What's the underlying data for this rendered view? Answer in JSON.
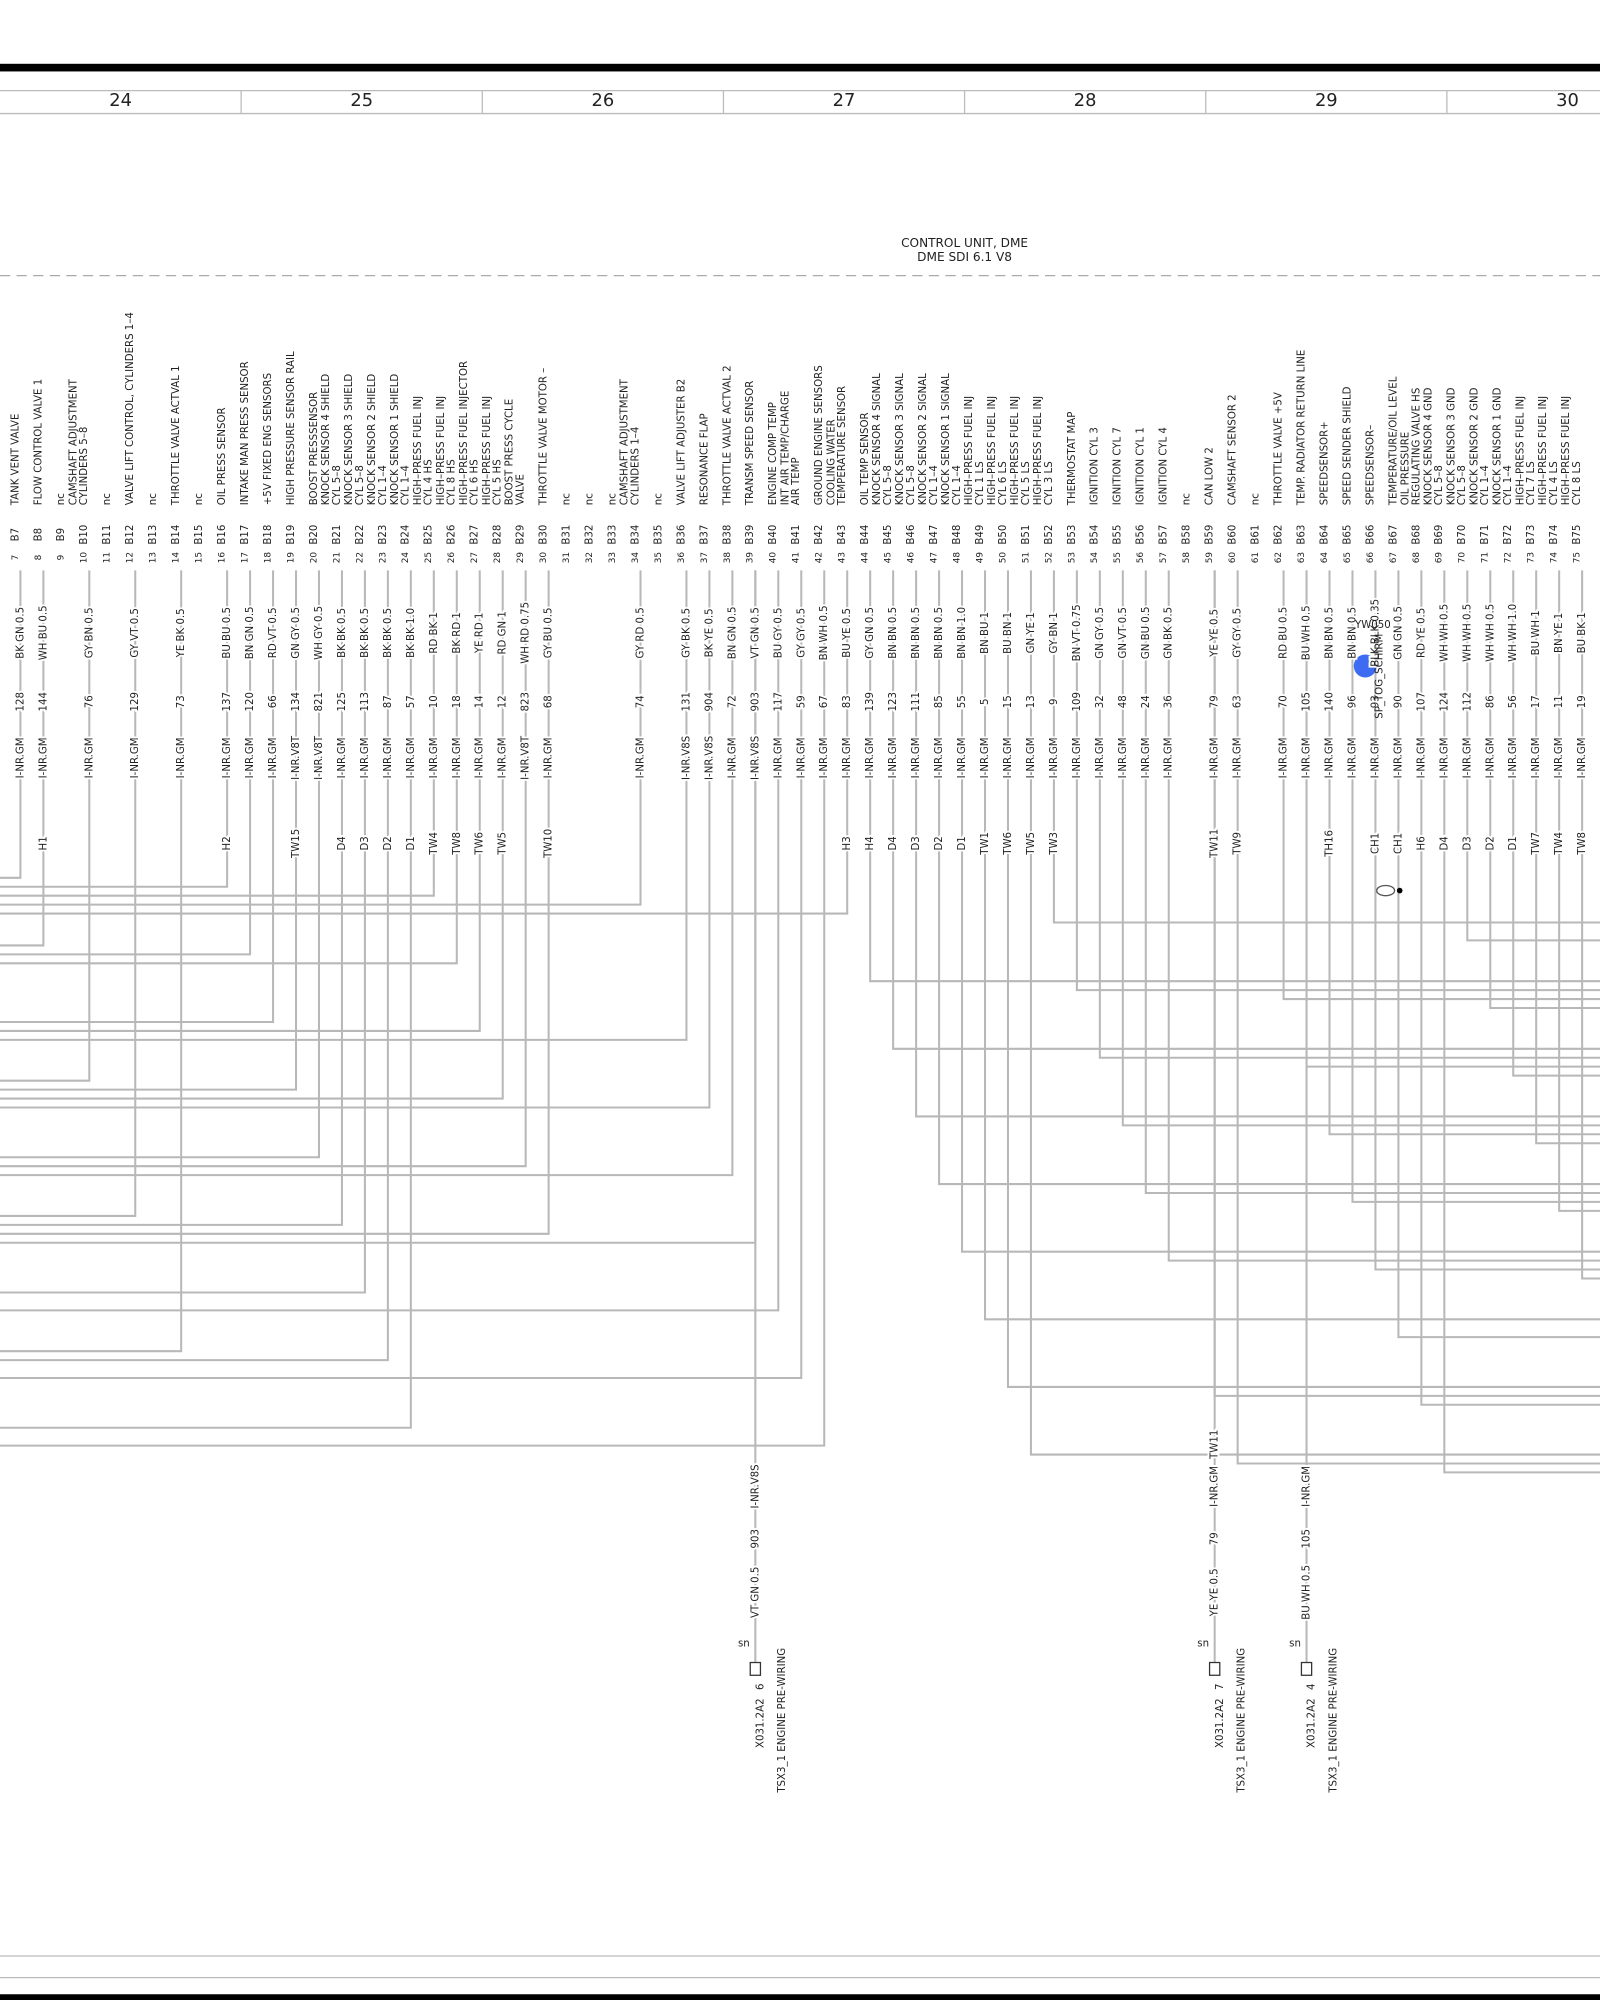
{
  "header": {
    "columns": [
      "24",
      "25",
      "26",
      "27",
      "28",
      "29",
      "30"
    ]
  },
  "title": [
    "CONTROL UNIT, DME",
    "DME SDI 6.1 V8"
  ],
  "pins": [
    {
      "pin": "B7",
      "number": "7",
      "label": [
        "TANK VENT VALVE"
      ],
      "harness": "I-NR.GM",
      "circuit": "128",
      "wire": "BK GN 0.5"
    },
    {
      "pin": "B8",
      "number": "8",
      "label": [
        "FLOW CONTROL VALVE 1"
      ],
      "harness": "I-NR.GM",
      "circuit": "144",
      "wire": "WH BU 0.5",
      "splice": "H1"
    },
    {
      "pin": "B9",
      "number": "9",
      "label": [
        "nc"
      ]
    },
    {
      "pin": "B10",
      "number": "10",
      "label": [
        "CAMSHAFT ADJUSTMENT",
        "CYLINDERS 5–8"
      ],
      "harness": "I-NR.GM",
      "circuit": "76",
      "wire": "GY BN 0.5"
    },
    {
      "pin": "B11",
      "number": "11",
      "label": [
        "nc"
      ]
    },
    {
      "pin": "B12",
      "number": "12",
      "label": [
        "VALVE LIFT CONTROL, CYLINDERS 1–4"
      ],
      "harness": "I-NR.GM",
      "circuit": "129",
      "wire": "GY VT 0.5"
    },
    {
      "pin": "B13",
      "number": "13",
      "label": [
        "nc"
      ]
    },
    {
      "pin": "B14",
      "number": "14",
      "label": [
        "THROTTLE VALVE ACTVAL 1"
      ],
      "harness": "I-NR.GM",
      "circuit": "73",
      "wire": "YE BK 0.5"
    },
    {
      "pin": "B15",
      "number": "15",
      "label": [
        "nc"
      ]
    },
    {
      "pin": "B16",
      "number": "16",
      "label": [
        "OIL PRESS SENSOR"
      ],
      "harness": "I-NR.GM",
      "circuit": "137",
      "wire": "BU BU 0.5",
      "splice": "H2"
    },
    {
      "pin": "B17",
      "number": "17",
      "label": [
        "INTAKE MAN PRESS SENSOR"
      ],
      "harness": "I-NR.GM",
      "circuit": "120",
      "wire": "BN GN 0.5"
    },
    {
      "pin": "B18",
      "number": "18",
      "label": [
        "+5V FIXED ENG SENSORS"
      ],
      "harness": "I-NR.GM",
      "circuit": "66",
      "wire": "RD VT 0.5"
    },
    {
      "pin": "B19",
      "number": "19",
      "label": [
        "HIGH PRESSURE SENSOR RAIL"
      ],
      "harness": "I-NR.V8T",
      "circuit": "134",
      "wire": "GN GY 0.5",
      "splice": "TW15"
    },
    {
      "pin": "B20",
      "number": "20",
      "label": [
        "BOOST PRESSSENSOR"
      ],
      "harness": "I-NR.V8T",
      "circuit": "821",
      "wire": "WH GY 0.5"
    },
    {
      "pin": "B21",
      "number": "21",
      "label": [
        "KNOCK SENSOR 4 SHIELD",
        "CYL 5–8"
      ],
      "harness": "I-NR.GM",
      "circuit": "125",
      "wire": "BK BK 0.5",
      "splice": "D4"
    },
    {
      "pin": "B22",
      "number": "22",
      "label": [
        "KNOCK SENSOR 3 SHIELD",
        "CYL 5–8"
      ],
      "harness": "I-NR.GM",
      "circuit": "113",
      "wire": "BK BK 0.5",
      "splice": "D3"
    },
    {
      "pin": "B23",
      "number": "23",
      "label": [
        "KNOCK SENSOR 2 SHIELD",
        "CYL 1–4"
      ],
      "harness": "I-NR.GM",
      "circuit": "87",
      "wire": "BK BK 0.5",
      "splice": "D2"
    },
    {
      "pin": "B24",
      "number": "24",
      "label": [
        "KNOCK SENSOR 1 SHIELD",
        "CYL 1–4"
      ],
      "harness": "I-NR.GM",
      "circuit": "57",
      "wire": "BK BK 1.0",
      "splice": "D1"
    },
    {
      "pin": "B25",
      "number": "25",
      "label": [
        "HIGH–PRESS FUEL INJ",
        "CYL 4 HS"
      ],
      "harness": "I-NR.GM",
      "circuit": "10",
      "wire": "RD BK 1",
      "splice": "TW4"
    },
    {
      "pin": "B26",
      "number": "26",
      "label": [
        "HIGH–PRESS FUEL INJ",
        "CYL 8 HS"
      ],
      "harness": "I-NR.GM",
      "circuit": "18",
      "wire": "BK RD 1",
      "splice": "TW8"
    },
    {
      "pin": "B27",
      "number": "27",
      "label": [
        "HIGH–PRESS FUEL INJECTOR",
        "CYL 6 HS"
      ],
      "harness": "I-NR.GM",
      "circuit": "14",
      "wire": "YE RD 1",
      "splice": "TW6"
    },
    {
      "pin": "B28",
      "number": "28",
      "label": [
        "HIGH–PRESS FUEL INJ",
        "CYL 5 HS"
      ],
      "harness": "I-NR.GM",
      "circuit": "12",
      "wire": "RD GN 1",
      "splice": "TW5"
    },
    {
      "pin": "B29",
      "number": "29",
      "label": [
        "BOOST PRESS CYCLE",
        "VALVE"
      ],
      "harness": "I-NR.V8T",
      "circuit": "823",
      "wire": "WH RD 0.75"
    },
    {
      "pin": "B30",
      "number": "30",
      "label": [
        "THROTTLE VALVE MOTOR –"
      ],
      "harness": "I-NR.GM",
      "circuit": "68",
      "wire": "GY BU 0.5",
      "splice": "TW10"
    },
    {
      "pin": "B31",
      "number": "31",
      "label": [
        "nc"
      ]
    },
    {
      "pin": "B32",
      "number": "32",
      "label": [
        "nc"
      ]
    },
    {
      "pin": "B33",
      "number": "33",
      "label": [
        "nc"
      ]
    },
    {
      "pin": "B34",
      "number": "34",
      "label": [
        "CAMSHAFT ADJUSTMENT",
        "CYLINDERS 1–4"
      ],
      "harness": "I-NR.GM",
      "circuit": "74",
      "wire": "GY RD 0.5"
    },
    {
      "pin": "B35",
      "number": "35",
      "label": [
        "nc"
      ]
    },
    {
      "pin": "B36",
      "number": "36",
      "label": [
        "VALVE LIFT ADJUSTER B2"
      ],
      "harness": "I-NR.V8S",
      "circuit": "131",
      "wire": "GY BK 0.5"
    },
    {
      "pin": "B37",
      "number": "37",
      "label": [
        "RESONANCE FLAP"
      ],
      "harness": "I-NR.V8S",
      "circuit": "904",
      "wire": "BK YE 0.5"
    },
    {
      "pin": "B38",
      "number": "38",
      "label": [
        "THROTTLE VALVE ACTVAL 2"
      ],
      "harness": "I-NR.GM",
      "circuit": "72",
      "wire": "BN GN 0.5"
    },
    {
      "pin": "B39",
      "number": "39",
      "label": [
        "TRANSM SPEED SENSOR"
      ],
      "harness": "I-NR.V8S",
      "circuit": "903",
      "wire": "VT GN 0.5"
    },
    {
      "pin": "B40",
      "number": "40",
      "label": [
        "ENGINE COMP TEMP"
      ],
      "harness": "I-NR.GM",
      "circuit": "117",
      "wire": "BU GY 0.5"
    },
    {
      "pin": "B41",
      "number": "41",
      "label": [
        "INT AIR TEMP/CHARGE",
        "AIR TEMP"
      ],
      "harness": "I-NR.GM",
      "circuit": "59",
      "wire": "GY GY 0.5"
    },
    {
      "pin": "B42",
      "number": "42",
      "label": [
        "GROUND ENGINE SENSORS"
      ],
      "harness": "I-NR.GM",
      "circuit": "67",
      "wire": "BN WH 0.5"
    },
    {
      "pin": "B43",
      "number": "43",
      "label": [
        "COOLING WATER",
        "TEMPERATURE SENSOR"
      ],
      "harness": "I-NR.GM",
      "circuit": "83",
      "wire": "BU YE 0.5",
      "splice": "H3"
    },
    {
      "pin": "B44",
      "number": "44",
      "label": [
        "OIL TEMP SENSOR"
      ],
      "harness": "I-NR.GM",
      "circuit": "139",
      "wire": "GY GN 0.5",
      "splice": "H4"
    },
    {
      "pin": "B45",
      "number": "45",
      "label": [
        "KNOCK SENSOR 4 SIGNAL",
        "CYL 5–8"
      ],
      "harness": "I-NR.GM",
      "circuit": "123",
      "wire": "BN BN 0.5",
      "splice": "D4"
    },
    {
      "pin": "B46",
      "number": "46",
      "label": [
        "KNOCK SENSOR 3 SIGNAL",
        "CYL 5–8"
      ],
      "harness": "I-NR.GM",
      "circuit": "111",
      "wire": "BN BN 0.5",
      "splice": "D3"
    },
    {
      "pin": "B47",
      "number": "47",
      "label": [
        "KNOCK SENSOR 2 SIGNAL",
        "CYL 1–4"
      ],
      "harness": "I-NR.GM",
      "circuit": "85",
      "wire": "BN BN 0.5",
      "splice": "D2"
    },
    {
      "pin": "B48",
      "number": "48",
      "label": [
        "KNOCK SENSOR 1 SIGNAL",
        "CYL 1–4"
      ],
      "harness": "I-NR.GM",
      "circuit": "55",
      "wire": "BN BN 1.0",
      "splice": "D1"
    },
    {
      "pin": "B49",
      "number": "49",
      "label": [
        "HIGH–PRESS FUEL INJ",
        "CYL 1 LS"
      ],
      "harness": "I-NR.GM",
      "circuit": "5",
      "wire": "BN BU 1",
      "splice": "TW1"
    },
    {
      "pin": "B50",
      "number": "50",
      "label": [
        "HIGH–PRESS FUEL INJ",
        "CYL 6 LS"
      ],
      "harness": "I-NR.GM",
      "circuit": "15",
      "wire": "BU BN 1",
      "splice": "TW6"
    },
    {
      "pin": "B51",
      "number": "51",
      "label": [
        "HIGH–PRESS FUEL INJ",
        "CYL 5 LS"
      ],
      "harness": "I-NR.GM",
      "circuit": "13",
      "wire": "GN YE 1",
      "splice": "TW5"
    },
    {
      "pin": "B52",
      "number": "52",
      "label": [
        "HIGH–PRESS FUEL INJ",
        "CYL 3 LS"
      ],
      "harness": "I-NR.GM",
      "circuit": "9",
      "wire": "GY BN 1",
      "splice": "TW3"
    },
    {
      "pin": "B53",
      "number": "53",
      "label": [
        "THERMOSTAT MAP"
      ],
      "harness": "I-NR.GM",
      "circuit": "109",
      "wire": "BN VT 0.75"
    },
    {
      "pin": "B54",
      "number": "54",
      "label": [
        "IGNITION CYL 3"
      ],
      "harness": "I-NR.GM",
      "circuit": "32",
      "wire": "GN GY 0.5"
    },
    {
      "pin": "B55",
      "number": "55",
      "label": [
        "IGNITION CYL 7"
      ],
      "harness": "I-NR.GM",
      "circuit": "48",
      "wire": "GN VT 0.5"
    },
    {
      "pin": "B56",
      "number": "56",
      "label": [
        "IGNITION CYL 1"
      ],
      "harness": "I-NR.GM",
      "circuit": "24",
      "wire": "GN BU 0.5"
    },
    {
      "pin": "B57",
      "number": "57",
      "label": [
        "IGNITION CYL 4"
      ],
      "harness": "I-NR.GM",
      "circuit": "36",
      "wire": "GN BK 0.5"
    },
    {
      "pin": "B58",
      "number": "58",
      "label": [
        "nc"
      ]
    },
    {
      "pin": "B59",
      "number": "59",
      "label": [
        "CAN LOW 2"
      ],
      "harness": "I-NR.GM",
      "circuit": "79",
      "wire": "YE YE 0.5",
      "splice": "TW11"
    },
    {
      "pin": "B60",
      "number": "60",
      "label": [
        "CAMSHAFT SENSOR 2"
      ],
      "harness": "I-NR.GM",
      "circuit": "63",
      "wire": "GY GY 0.5",
      "splice": "TW9"
    },
    {
      "pin": "B61",
      "number": "61",
      "label": [
        "nc"
      ]
    },
    {
      "pin": "B62",
      "number": "62",
      "label": [
        "THROTTLE VALVE +5V"
      ],
      "harness": "I-NR.GM",
      "circuit": "70",
      "wire": "RD BU 0.5"
    },
    {
      "pin": "B63",
      "number": "63",
      "label": [
        "TEMP. RADIATOR RETURN LINE"
      ],
      "harness": "I-NR.GM",
      "circuit": "105",
      "wire": "BU WH 0.5"
    },
    {
      "pin": "B64",
      "number": "64",
      "label": [
        "SPEEDSENSOR+"
      ],
      "harness": "I-NR.GM",
      "circuit": "140",
      "wire": "BN BN 0.5",
      "splice": "TH16"
    },
    {
      "pin": "B65",
      "number": "65",
      "label": [
        "SPEED SENDER SHIELD"
      ],
      "harness": "I-NR.GM",
      "circuit": "96",
      "wire": "BN BN 0.5"
    },
    {
      "pin": "B66",
      "number": "66",
      "label": [
        "SPEEDSENSOR–"
      ],
      "harness": "I-NR.GM",
      "circuit": "93",
      "wire": "BLK BLK 0.35",
      "splice": "CH1"
    },
    {
      "pin": "B67",
      "number": "67",
      "label": [
        "TEMPERATURE/OIL LEVEL"
      ],
      "harness": "I-NR.GM",
      "circuit": "90",
      "wire": "GN GN 0.5",
      "splice": "CH1"
    },
    {
      "pin": "B68",
      "number": "68",
      "label": [
        "OIL PRESSURE",
        "REGULATING VALVE HS"
      ],
      "harness": "I-NR.GM",
      "circuit": "107",
      "wire": "RD YE 0.5",
      "splice": "H6"
    },
    {
      "pin": "B69",
      "number": "69",
      "label": [
        "KNOCK SENSOR 4 GND",
        "CYL 5–8"
      ],
      "harness": "I-NR.GM",
      "circuit": "124",
      "wire": "WH WH 0.5",
      "splice": "D4"
    },
    {
      "pin": "B70",
      "number": "70",
      "label": [
        "KNOCK SENSOR 3 GND",
        "CYL 5–8"
      ],
      "harness": "I-NR.GM",
      "circuit": "112",
      "wire": "WH WH 0.5",
      "splice": "D3"
    },
    {
      "pin": "B71",
      "number": "71",
      "label": [
        "KNOCK SENSOR 2 GND",
        "CYL 1–4"
      ],
      "harness": "I-NR.GM",
      "circuit": "86",
      "wire": "WH WH 0.5",
      "splice": "D2"
    },
    {
      "pin": "B72",
      "number": "72",
      "label": [
        "KNOCK SENSOR 1 GND",
        "CYL 1–4"
      ],
      "harness": "I-NR.GM",
      "circuit": "56",
      "wire": "WH WH 1.0",
      "splice": "D1"
    },
    {
      "pin": "B73",
      "number": "73",
      "label": [
        "HIGH–PRESS FUEL INJ",
        "CYL 7 LS"
      ],
      "harness": "I-NR.GM",
      "circuit": "17",
      "wire": "BU WH 1",
      "splice": "TW7"
    },
    {
      "pin": "B74",
      "number": "74",
      "label": [
        "HIGH–PRESS FUEL INJ",
        "CYL 4 LS"
      ],
      "harness": "I-NR.GM",
      "circuit": "11",
      "wire": "BN YE 1",
      "splice": "TW4"
    },
    {
      "pin": "B75",
      "number": "75",
      "label": [
        "HIGH–PRESS FUEL INJ",
        "CYL 8 LS"
      ],
      "harness": "I-NR.GM",
      "circuit": "19",
      "wire": "BU BK 1",
      "splice": "TW8"
    }
  ],
  "splice_point": {
    "id": "YW050",
    "name": "SP_TOG_SCHIRM"
  },
  "connectors": [
    {
      "wire": "VT GN 0.5",
      "circuit": "903",
      "harness": "I-NR.V8S",
      "type": "sn",
      "connector": "X031.2A2",
      "pin": "6",
      "name": "TSX3_1 ENGINE PRE-WIRING"
    },
    {
      "wire": "YE YE 0.5",
      "circuit": "79",
      "harness": "I-NR.GM",
      "splice": "TW11",
      "type": "sn",
      "connector": "X031.2A2",
      "pin": "7",
      "name": "TSX3_1 ENGINE PRE-WIRING"
    },
    {
      "wire": "BU WH 0.5",
      "circuit": "105",
      "harness": "I-NR.GM",
      "type": "sn",
      "connector": "X031.2A2",
      "pin": "4",
      "name": "TSX3_1 ENGINE PRE-WIRING"
    }
  ]
}
